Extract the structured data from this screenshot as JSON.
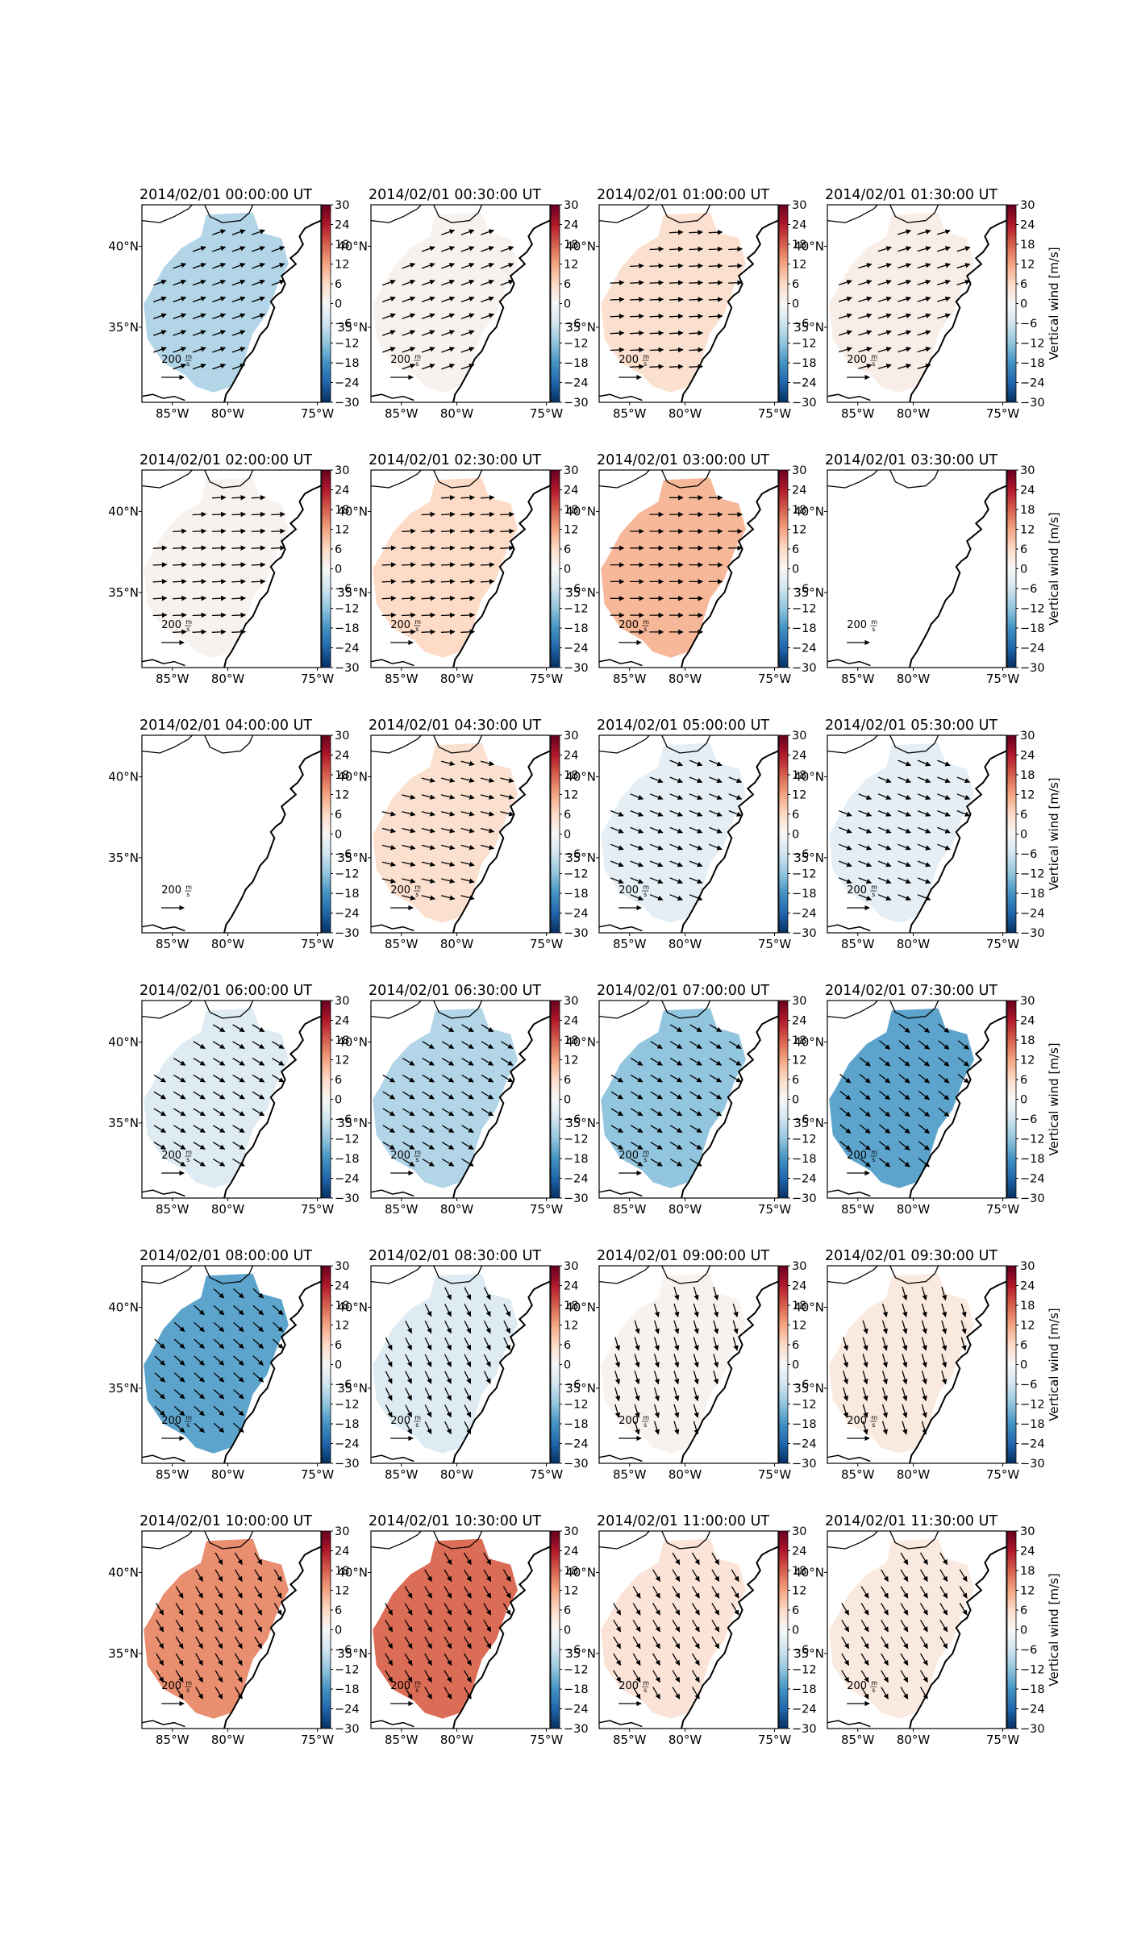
{
  "figure": {
    "colorbar": {
      "label": "Vertical wind [m/s]",
      "ticks": [
        "30",
        "24",
        "18",
        "12",
        "6",
        "0",
        "−6",
        "−12",
        "−18",
        "−24",
        "−30"
      ],
      "range": [
        -30,
        30
      ]
    },
    "axes": {
      "lon_ticks": [
        "85°W",
        "80°W",
        "75°W"
      ],
      "lat_ticks": [
        "40°N",
        "35°N"
      ]
    },
    "reference_vector": {
      "value": "200",
      "unit_numerator": "m",
      "unit_denominator": "s"
    },
    "colors": {
      "coastline": "#000000",
      "arrow": "#000000"
    }
  },
  "panels": [
    {
      "title": "2014/02/01 00:00:00 UT",
      "vertical_wind": -9,
      "wind_u": 1.0,
      "wind_v": 0.35,
      "arrows": true
    },
    {
      "title": "2014/02/01 00:30:00 UT",
      "vertical_wind": 1,
      "wind_u": 1.0,
      "wind_v": 0.35,
      "arrows": true
    },
    {
      "title": "2014/02/01 01:00:00 UT",
      "vertical_wind": 5,
      "wind_u": 1.0,
      "wind_v": 0.05,
      "arrows": true
    },
    {
      "title": "2014/02/01 01:30:00 UT",
      "vertical_wind": 2,
      "wind_u": 1.0,
      "wind_v": 0.3,
      "arrows": true
    },
    {
      "title": "2014/02/01 02:00:00 UT",
      "vertical_wind": 1,
      "wind_u": 1.0,
      "wind_v": 0.05,
      "arrows": true
    },
    {
      "title": "2014/02/01 02:30:00 UT",
      "vertical_wind": 6,
      "wind_u": 1.0,
      "wind_v": 0.05,
      "arrows": true
    },
    {
      "title": "2014/02/01 03:00:00 UT",
      "vertical_wind": 10,
      "wind_u": 1.0,
      "wind_v": 0.0,
      "arrows": true
    },
    {
      "title": "2014/02/01 03:30:00 UT",
      "vertical_wind": null,
      "wind_u": 0,
      "wind_v": 0,
      "arrows": false
    },
    {
      "title": "2014/02/01 04:00:00 UT",
      "vertical_wind": null,
      "wind_u": 0,
      "wind_v": 0,
      "arrows": false
    },
    {
      "title": "2014/02/01 04:30:00 UT",
      "vertical_wind": 5,
      "wind_u": 1.0,
      "wind_v": -0.25,
      "arrows": true
    },
    {
      "title": "2014/02/01 05:00:00 UT",
      "vertical_wind": -3,
      "wind_u": 1.0,
      "wind_v": -0.4,
      "arrows": true
    },
    {
      "title": "2014/02/01 05:30:00 UT",
      "vertical_wind": -3,
      "wind_u": 1.0,
      "wind_v": -0.4,
      "arrows": true
    },
    {
      "title": "2014/02/01 06:00:00 UT",
      "vertical_wind": -4,
      "wind_u": 1.0,
      "wind_v": -0.6,
      "arrows": true
    },
    {
      "title": "2014/02/01 06:30:00 UT",
      "vertical_wind": -9,
      "wind_u": 1.0,
      "wind_v": -0.6,
      "arrows": true
    },
    {
      "title": "2014/02/01 07:00:00 UT",
      "vertical_wind": -12,
      "wind_u": 1.0,
      "wind_v": -0.6,
      "arrows": true
    },
    {
      "title": "2014/02/01 07:30:00 UT",
      "vertical_wind": -16,
      "wind_u": 1.0,
      "wind_v": -0.8,
      "arrows": true
    },
    {
      "title": "2014/02/01 08:00:00 UT",
      "vertical_wind": -16,
      "wind_u": 1.0,
      "wind_v": -0.9,
      "arrows": true
    },
    {
      "title": "2014/02/01 08:30:00 UT",
      "vertical_wind": -4,
      "wind_u": 0.5,
      "wind_v": -1.0,
      "arrows": true
    },
    {
      "title": "2014/02/01 09:00:00 UT",
      "vertical_wind": 1,
      "wind_u": 0.3,
      "wind_v": -1.0,
      "arrows": true
    },
    {
      "title": "2014/02/01 09:30:00 UT",
      "vertical_wind": 3,
      "wind_u": 0.3,
      "wind_v": -1.0,
      "arrows": true
    },
    {
      "title": "2014/02/01 10:00:00 UT",
      "vertical_wind": 14,
      "wind_u": 0.6,
      "wind_v": -1.0,
      "arrows": true
    },
    {
      "title": "2014/02/01 10:30:00 UT",
      "vertical_wind": 17,
      "wind_u": 0.6,
      "wind_v": -1.0,
      "arrows": true
    },
    {
      "title": "2014/02/01 11:00:00 UT",
      "vertical_wind": 4,
      "wind_u": 0.6,
      "wind_v": -1.0,
      "arrows": true
    },
    {
      "title": "2014/02/01 11:30:00 UT",
      "vertical_wind": 3,
      "wind_u": 0.6,
      "wind_v": -1.0,
      "arrows": true
    }
  ]
}
